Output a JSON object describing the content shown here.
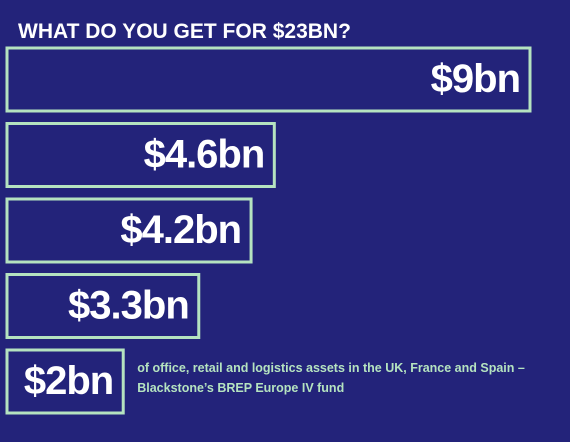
{
  "chart_data": {
    "type": "bar",
    "orientation": "horizontal",
    "title": "WHAT DO YOU GET FOR $23BN?",
    "categories": [
      null,
      null,
      null,
      null,
      "of office, retail and logistics assets in the UK, France and Spain – Blackstone’s BREP Europe IV fund"
    ],
    "values": [
      9,
      4.6,
      4.2,
      3.3,
      2
    ],
    "value_labels": [
      "$9bn",
      "$4.6bn",
      "$4.2bn",
      "$3.3bn",
      "$2bn"
    ],
    "color": "#b5e3c0"
  }
}
